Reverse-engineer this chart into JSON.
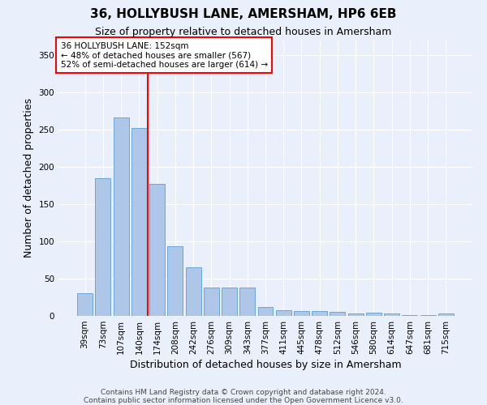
{
  "title1": "36, HOLLYBUSH LANE, AMERSHAM, HP6 6EB",
  "title2": "Size of property relative to detached houses in Amersham",
  "xlabel": "Distribution of detached houses by size in Amersham",
  "ylabel": "Number of detached properties",
  "footnote1": "Contains HM Land Registry data © Crown copyright and database right 2024.",
  "footnote2": "Contains public sector information licensed under the Open Government Licence v3.0.",
  "categories": [
    "39sqm",
    "73sqm",
    "107sqm",
    "140sqm",
    "174sqm",
    "208sqm",
    "242sqm",
    "276sqm",
    "309sqm",
    "343sqm",
    "377sqm",
    "411sqm",
    "445sqm",
    "478sqm",
    "512sqm",
    "546sqm",
    "580sqm",
    "614sqm",
    "647sqm",
    "681sqm",
    "715sqm"
  ],
  "values": [
    30,
    185,
    267,
    253,
    177,
    94,
    65,
    38,
    38,
    38,
    12,
    8,
    7,
    7,
    5,
    3,
    4,
    3,
    1,
    1,
    3
  ],
  "bar_color": "#aec6e8",
  "bar_edge_color": "#5a9fd4",
  "annotation_text_line1": "36 HOLLYBUSH LANE: 152sqm",
  "annotation_text_line2": "← 48% of detached houses are smaller (567)",
  "annotation_text_line3": "52% of semi-detached houses are larger (614) →",
  "annotation_box_color": "white",
  "annotation_box_edge_color": "red",
  "vline_color": "red",
  "vline_x": 3.48,
  "background_color": "#eaf0fb",
  "grid_color": "white",
  "ylim": [
    0,
    370
  ],
  "yticks": [
    0,
    50,
    100,
    150,
    200,
    250,
    300,
    350
  ],
  "title1_fontsize": 11,
  "title2_fontsize": 9,
  "ylabel_fontsize": 9,
  "xlabel_fontsize": 9,
  "tick_fontsize": 7.5,
  "footnote_fontsize": 6.5,
  "annot_fontsize": 7.5
}
